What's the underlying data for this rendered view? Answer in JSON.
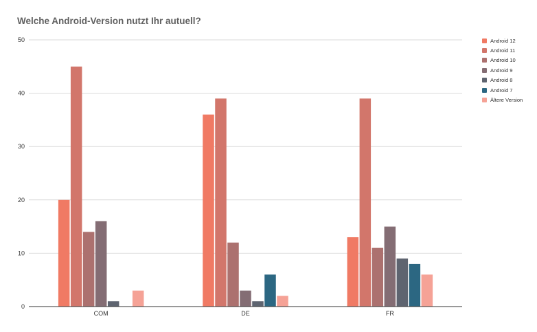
{
  "chart_data": {
    "type": "bar",
    "title": "Welche Android-Version nutzt Ihr autuell?",
    "xlabel": "",
    "ylabel": "",
    "ylim": [
      0,
      50
    ],
    "yticks": [
      "0",
      "10",
      "20",
      "30",
      "40",
      "50"
    ],
    "grid": true,
    "legend_position": "right",
    "categories": [
      "COM",
      "DE",
      "FR"
    ],
    "series": [
      {
        "name": "Android 12",
        "color": "#f07a64",
        "values": [
          20,
          36,
          13
        ]
      },
      {
        "name": "Android 11",
        "color": "#d2766b",
        "values": [
          45,
          39,
          39
        ]
      },
      {
        "name": "Android 10",
        "color": "#ac716f",
        "values": [
          14,
          12,
          11
        ]
      },
      {
        "name": "Android 9",
        "color": "#846d74",
        "values": [
          16,
          3,
          15
        ]
      },
      {
        "name": "Android 8",
        "color": "#5e6470",
        "values": [
          1,
          1,
          9
        ]
      },
      {
        "name": "Android 7",
        "color": "#2c6782",
        "values": [
          0,
          6,
          8
        ]
      },
      {
        "name": "Ältere Version",
        "color": "#f5a296",
        "values": [
          3,
          2,
          6
        ]
      }
    ]
  }
}
